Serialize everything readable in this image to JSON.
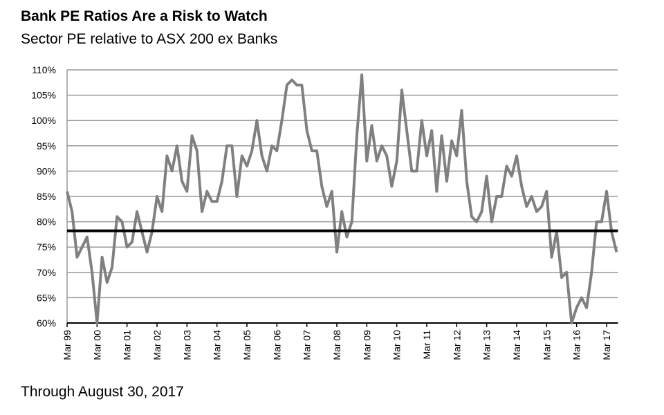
{
  "chart_data": {
    "type": "line",
    "title": "Bank PE Ratios Are a Risk to Watch",
    "subtitle": "Sector PE relative to ASX 200 ex Banks",
    "footnote": "Through August 30, 2017",
    "categories": [
      "Mar 99",
      null,
      null,
      null,
      null,
      null,
      "Mar 00",
      null,
      null,
      null,
      null,
      null,
      "Mar 01",
      null,
      null,
      null,
      null,
      null,
      "Mar 02",
      null,
      null,
      null,
      null,
      null,
      "Mar 03",
      null,
      null,
      null,
      null,
      null,
      "Mar 04",
      null,
      null,
      null,
      null,
      null,
      "Mar 05",
      null,
      null,
      null,
      null,
      null,
      "Mar 06",
      null,
      null,
      null,
      null,
      null,
      "Mar 07",
      null,
      null,
      null,
      null,
      null,
      "Mar 08",
      null,
      null,
      null,
      null,
      null,
      "Mar 09",
      null,
      null,
      null,
      null,
      null,
      "Mar 10",
      null,
      null,
      null,
      null,
      null,
      "Mar 11",
      null,
      null,
      null,
      null,
      null,
      "Mar 12",
      null,
      null,
      null,
      null,
      null,
      "Mar 13",
      null,
      null,
      null,
      null,
      null,
      "Mar 14",
      null,
      null,
      null,
      null,
      null,
      "Mar 15",
      null,
      null,
      null,
      null,
      null,
      "Mar 16",
      null,
      null,
      null,
      null,
      null,
      "Mar 17",
      null,
      null
    ],
    "series": [
      {
        "color": "#808080",
        "values": [
          86,
          82,
          73,
          75,
          77,
          70,
          60,
          73,
          68,
          71,
          81,
          80,
          75,
          76,
          82,
          78,
          74,
          78,
          85,
          82,
          93,
          90,
          95,
          88,
          86,
          97,
          94,
          82,
          86,
          84,
          84,
          88,
          95,
          95,
          85,
          93,
          91,
          94,
          100,
          93,
          90,
          95,
          94,
          100,
          107,
          108,
          107,
          107,
          98,
          94,
          94,
          87,
          83,
          86,
          74,
          82,
          77,
          80,
          97,
          109,
          92,
          99,
          92,
          95,
          93,
          87,
          92,
          106,
          98,
          90,
          90,
          100,
          93,
          98,
          86,
          97,
          88,
          96,
          93,
          102,
          88,
          81,
          80,
          82,
          89,
          80,
          85,
          85,
          91,
          89,
          93,
          87,
          83,
          85,
          82,
          83,
          86,
          73,
          78,
          69,
          70,
          60,
          63,
          65,
          63,
          70,
          80,
          80,
          86,
          78,
          74
        ]
      }
    ],
    "reference_line": {
      "value": 78.2,
      "color": "#000000"
    },
    "ylim": [
      60,
      110
    ],
    "yticks": [
      {
        "value": 60,
        "label": "60%"
      },
      {
        "value": 65,
        "label": "65%"
      },
      {
        "value": 70,
        "label": "70%"
      },
      {
        "value": 75,
        "label": "75%"
      },
      {
        "value": 80,
        "label": "80%"
      },
      {
        "value": 85,
        "label": "85%"
      },
      {
        "value": 90,
        "label": "90%"
      },
      {
        "value": 95,
        "label": "95%"
      },
      {
        "value": 100,
        "label": "100%"
      },
      {
        "value": 105,
        "label": "105%"
      },
      {
        "value": 110,
        "label": "110%"
      }
    ],
    "grid": true
  }
}
